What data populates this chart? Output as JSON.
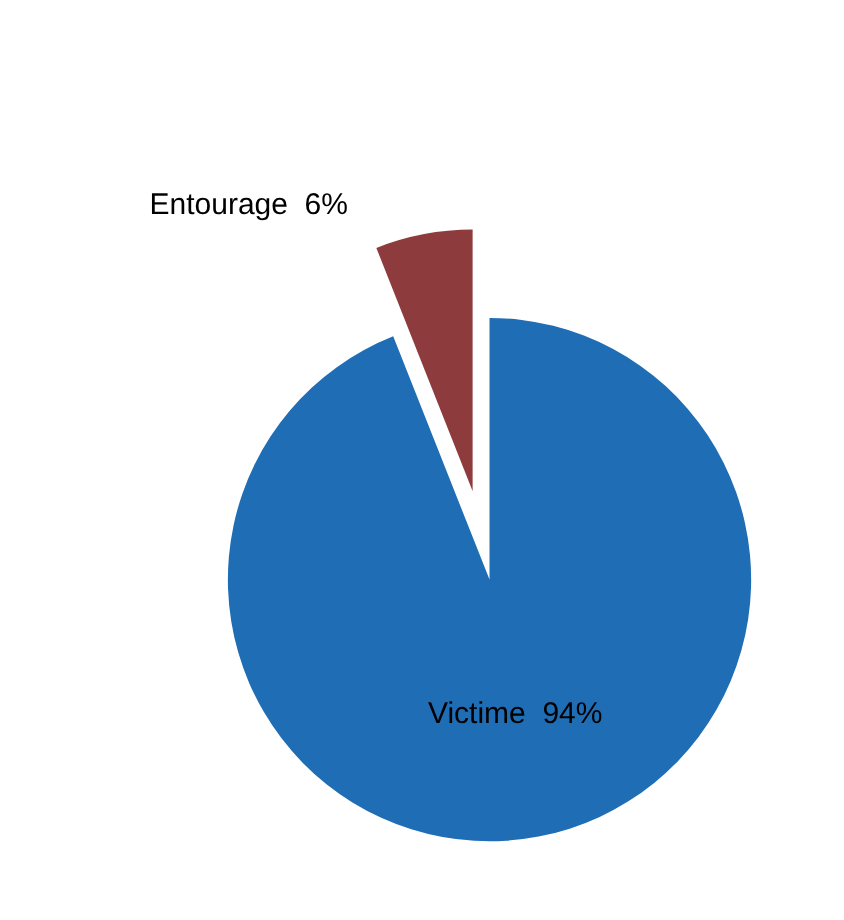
{
  "chart_data": {
    "type": "pie",
    "categories": [
      "Victime",
      "Entourage"
    ],
    "values": [
      94,
      6
    ],
    "value_labels": [
      "94%",
      "6%"
    ],
    "colors": [
      "#1f6db5",
      "#8e3b3d"
    ],
    "legend": false
  }
}
